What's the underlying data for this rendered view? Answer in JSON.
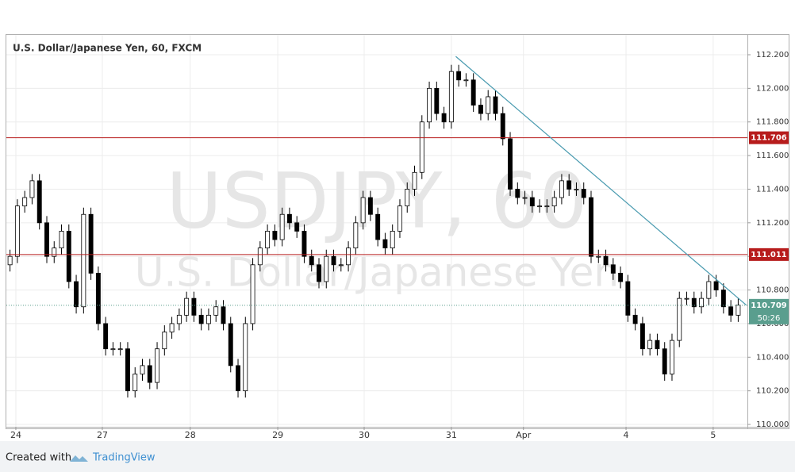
{
  "chart_data": {
    "type": "candlestick",
    "title": "U.S. Dollar/Japanese Yen, 60, FXCM",
    "watermark": "USDJPY, 60",
    "watermark_subtitle": "U.S. Dollar/Japanese Yen",
    "footer": {
      "prefix": "Created with",
      "brand": "TradingView"
    },
    "countdown": "50:26",
    "up_color": "#ffffff",
    "down_color": "#000000",
    "wick_color": "#000000",
    "grid": true,
    "xlim": [
      -0.5,
      100.25
    ],
    "ylim": [
      109.986,
      112.318
    ],
    "yticks": [
      {
        "value": 110.0,
        "label": "110.000"
      },
      {
        "value": 110.2,
        "label": "110.200"
      },
      {
        "value": 110.4,
        "label": "110.400"
      },
      {
        "value": 110.6,
        "label": "110.600"
      },
      {
        "value": 110.8,
        "label": "110.800"
      },
      {
        "value": 111.0,
        "label": "111.000"
      },
      {
        "value": 111.2,
        "label": "111.200"
      },
      {
        "value": 111.4,
        "label": "111.400"
      },
      {
        "value": 111.6,
        "label": "111.600"
      },
      {
        "value": 111.8,
        "label": "111.800"
      },
      {
        "value": 112.0,
        "label": "112.000"
      },
      {
        "value": 112.2,
        "label": "112.200"
      }
    ],
    "xticks": [
      {
        "value": 0.79,
        "label": "24"
      },
      {
        "value": 12.55,
        "label": "27"
      },
      {
        "value": 24.5,
        "label": "28"
      },
      {
        "value": 36.4,
        "label": "29"
      },
      {
        "value": 48.15,
        "label": "30"
      },
      {
        "value": 60.0,
        "label": "31"
      },
      {
        "value": 69.8,
        "label": "Apr"
      },
      {
        "value": 83.75,
        "label": "4"
      },
      {
        "value": 95.6,
        "label": "5"
      }
    ],
    "levels": [
      {
        "value": 111.706,
        "color": "#b71c1c"
      },
      {
        "value": 111.011,
        "color": "#b71c1c"
      }
    ],
    "current_price": {
      "value": 110.709,
      "color": "#5a9e8e"
    },
    "trendline": {
      "x": [
        60.6,
        100.1
      ],
      "y": [
        112.19,
        110.71
      ],
      "color": "#4a9bb0"
    },
    "open": [
      110.95,
      111.0,
      111.3,
      111.35,
      111.45,
      111.2,
      111.0,
      111.05,
      111.15,
      110.85,
      110.7,
      111.25,
      110.9,
      110.6,
      110.45,
      110.45,
      110.45,
      110.2,
      110.3,
      110.35,
      110.25,
      110.45,
      110.55,
      110.6,
      110.65,
      110.75,
      110.65,
      110.6,
      110.65,
      110.7,
      110.6,
      110.35,
      110.2,
      110.6,
      110.95,
      111.05,
      111.15,
      111.1,
      111.25,
      111.2,
      111.15,
      111.0,
      110.95,
      110.85,
      111.0,
      110.95,
      110.95,
      111.05,
      111.2,
      111.35,
      111.25,
      111.1,
      111.05,
      111.15,
      111.3,
      111.4,
      111.5,
      111.8,
      112.0,
      111.85,
      111.8,
      112.1,
      112.05,
      112.05,
      111.9,
      111.85,
      111.95,
      111.85,
      111.7,
      111.4,
      111.35,
      111.35,
      111.3,
      111.3,
      111.3,
      111.35,
      111.45,
      111.4,
      111.4,
      111.35,
      111.0,
      111.0,
      110.95,
      110.9,
      110.85,
      110.65,
      110.6,
      110.45,
      110.5,
      110.45,
      110.3,
      110.5,
      110.75,
      110.75,
      110.7,
      110.75,
      110.85,
      110.8,
      110.7,
      110.65
    ],
    "high": [
      111.04,
      111.34,
      111.39,
      111.49,
      111.49,
      111.24,
      111.09,
      111.19,
      111.19,
      110.89,
      111.29,
      111.29,
      110.94,
      110.64,
      110.49,
      110.49,
      110.49,
      110.34,
      110.39,
      110.39,
      110.49,
      110.59,
      110.64,
      110.69,
      110.79,
      110.79,
      110.69,
      110.69,
      110.74,
      110.74,
      110.64,
      110.39,
      110.64,
      110.99,
      111.09,
      111.19,
      111.19,
      111.29,
      111.29,
      111.24,
      111.19,
      111.04,
      110.99,
      111.04,
      111.04,
      110.99,
      111.09,
      111.24,
      111.39,
      111.39,
      111.29,
      111.14,
      111.19,
      111.34,
      111.44,
      111.54,
      111.84,
      112.04,
      112.04,
      111.89,
      112.14,
      112.14,
      112.09,
      112.09,
      111.94,
      111.99,
      111.99,
      111.89,
      111.74,
      111.44,
      111.39,
      111.39,
      111.34,
      111.34,
      111.39,
      111.49,
      111.49,
      111.44,
      111.44,
      111.39,
      111.04,
      111.04,
      110.99,
      110.94,
      110.89,
      110.69,
      110.64,
      110.54,
      110.54,
      110.49,
      110.54,
      110.79,
      110.79,
      110.79,
      110.79,
      110.89,
      110.89,
      110.84,
      110.74,
      110.75
    ],
    "low": [
      110.91,
      110.96,
      111.26,
      111.31,
      111.16,
      110.96,
      110.96,
      111.01,
      110.81,
      110.66,
      110.66,
      110.86,
      110.56,
      110.41,
      110.41,
      110.41,
      110.16,
      110.16,
      110.26,
      110.21,
      110.21,
      110.41,
      110.51,
      110.56,
      110.61,
      110.61,
      110.56,
      110.56,
      110.61,
      110.56,
      110.31,
      110.16,
      110.16,
      110.56,
      110.91,
      111.01,
      111.06,
      111.06,
      111.16,
      111.11,
      110.96,
      110.91,
      110.81,
      110.81,
      110.91,
      110.91,
      110.91,
      111.01,
      111.16,
      111.21,
      111.06,
      111.01,
      111.01,
      111.11,
      111.26,
      111.36,
      111.46,
      111.76,
      111.81,
      111.76,
      111.76,
      112.01,
      112.01,
      111.86,
      111.81,
      111.81,
      111.81,
      111.66,
      111.36,
      111.31,
      111.31,
      111.26,
      111.26,
      111.26,
      111.26,
      111.31,
      111.36,
      111.36,
      111.31,
      110.96,
      110.96,
      110.91,
      110.86,
      110.81,
      110.61,
      110.56,
      110.41,
      110.41,
      110.41,
      110.26,
      110.26,
      110.46,
      110.71,
      110.66,
      110.66,
      110.71,
      110.76,
      110.66,
      110.61,
      110.61
    ],
    "close": [
      111.0,
      111.3,
      111.35,
      111.45,
      111.2,
      111.0,
      111.05,
      111.15,
      110.85,
      110.7,
      111.25,
      110.9,
      110.6,
      110.45,
      110.45,
      110.45,
      110.2,
      110.3,
      110.35,
      110.25,
      110.45,
      110.55,
      110.6,
      110.65,
      110.75,
      110.65,
      110.6,
      110.65,
      110.7,
      110.6,
      110.35,
      110.2,
      110.6,
      110.95,
      111.05,
      111.15,
      111.1,
      111.25,
      111.2,
      111.15,
      111.0,
      110.95,
      110.85,
      111.0,
      110.95,
      110.95,
      111.05,
      111.2,
      111.35,
      111.25,
      111.1,
      111.05,
      111.15,
      111.3,
      111.4,
      111.5,
      111.8,
      112.0,
      111.85,
      111.8,
      112.1,
      112.05,
      112.05,
      111.9,
      111.85,
      111.95,
      111.85,
      111.7,
      111.4,
      111.35,
      111.35,
      111.3,
      111.3,
      111.3,
      111.35,
      111.45,
      111.4,
      111.4,
      111.35,
      111.0,
      111.0,
      110.95,
      110.9,
      110.85,
      110.65,
      110.6,
      110.45,
      110.5,
      110.45,
      110.3,
      110.5,
      110.75,
      110.75,
      110.7,
      110.75,
      110.85,
      110.8,
      110.7,
      110.65,
      110.71
    ]
  }
}
